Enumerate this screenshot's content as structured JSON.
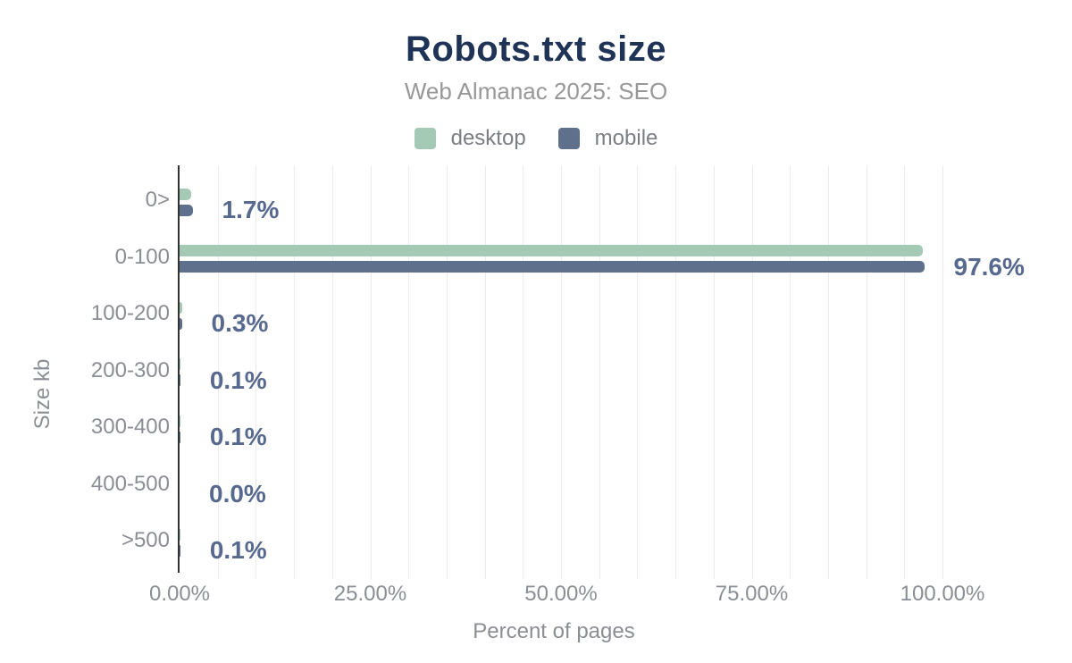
{
  "title": "Robots.txt size",
  "subtitle": "Web Almanac 2025: SEO",
  "legend": [
    {
      "label": "desktop",
      "color": "#a4c9b4"
    },
    {
      "label": "mobile",
      "color": "#5e708c"
    }
  ],
  "colors": {
    "title": "#1f3357",
    "subtitle_text": "#989898",
    "axis_text": "#8b8e94",
    "value_label": "#57698e",
    "desktop_bar": "#a4c9b4",
    "mobile_bar": "#5e708c",
    "gridline": "#ececec",
    "axis_line": "#333333"
  },
  "chart_data": {
    "type": "bar",
    "orientation": "horizontal",
    "title": "Robots.txt size",
    "subtitle": "Web Almanac 2025: SEO",
    "categories": [
      "0>",
      "0-100",
      "100-200",
      "200-300",
      "300-400",
      "400-500",
      ">500"
    ],
    "series": [
      {
        "name": "desktop",
        "color": "#a4c9b4",
        "values": [
          1.5,
          97.4,
          0.3,
          0.1,
          0.1,
          0.0,
          0.1
        ]
      },
      {
        "name": "mobile",
        "color": "#5e708c",
        "values": [
          1.7,
          97.6,
          0.3,
          0.1,
          0.1,
          0.0,
          0.1
        ]
      }
    ],
    "data_labels": [
      "1.7%",
      "97.6%",
      "0.3%",
      "0.1%",
      "0.1%",
      "0.0%",
      "0.1%"
    ],
    "xlabel": "Percent of pages",
    "ylabel": "Size kb",
    "xlim": [
      0,
      100
    ],
    "x_ticks": [
      {
        "value": 0,
        "label": "0.00%"
      },
      {
        "value": 25,
        "label": "25.00%"
      },
      {
        "value": 50,
        "label": "50.00%"
      },
      {
        "value": 75,
        "label": "75.00%"
      },
      {
        "value": 100,
        "label": "100.00%"
      }
    ],
    "grid": "vertical minor gridlines every 5%",
    "legend_position": "top"
  }
}
